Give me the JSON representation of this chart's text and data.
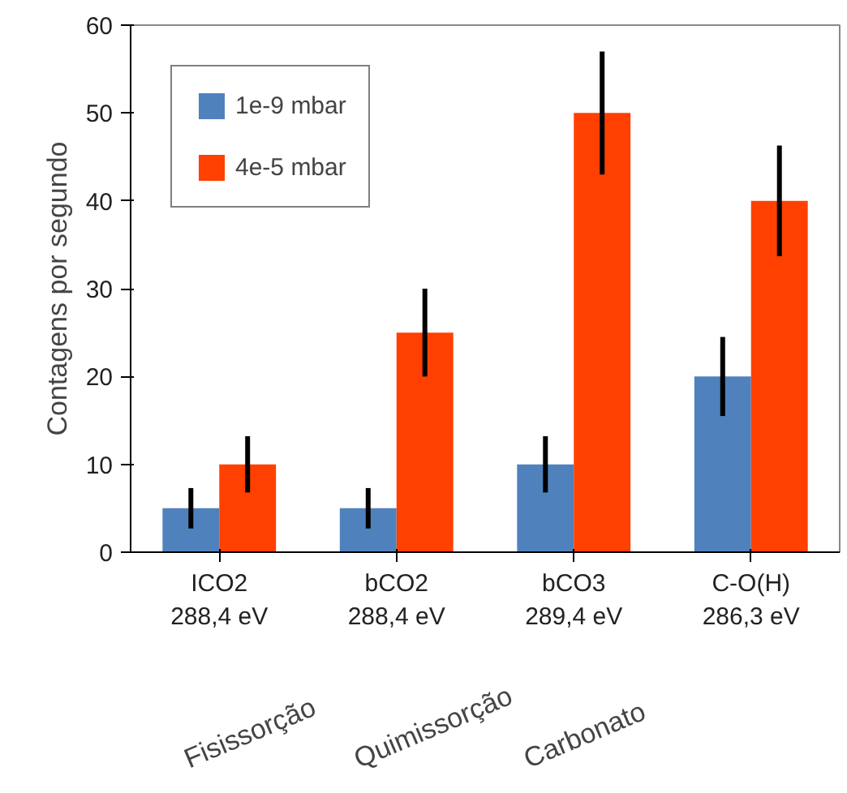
{
  "chart_data": {
    "type": "bar",
    "ylabel": "Contagens por segundo",
    "categories": [
      "ICO2\n288,4 eV",
      "bCO2\n288,4 eV",
      "bCO3\n289,4 eV",
      "C-O(H)\n286,3 eV"
    ],
    "series": [
      {
        "name": "1e-9 mbar",
        "color": "#4f81bd",
        "values": [
          5,
          5,
          10,
          20
        ],
        "errors": [
          2.3,
          2.3,
          3.2,
          4.5
        ]
      },
      {
        "name": "4e-5 mbar",
        "color": "#ff4000",
        "values": [
          10,
          25,
          50,
          40
        ],
        "errors": [
          3.2,
          5,
          7,
          6.3
        ]
      }
    ],
    "ylim": [
      0,
      60
    ],
    "yticks": [
      0,
      10,
      20,
      30,
      40,
      50,
      60
    ],
    "grid": false,
    "legend": "top left",
    "annotations": [
      "Fisissorção",
      "Quimissorção",
      "Carbonato"
    ]
  }
}
